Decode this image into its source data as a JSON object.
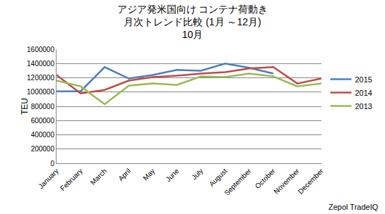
{
  "chart_data": {
    "type": "line",
    "title": [
      "アジア発米国向け コンテナ荷動き",
      "月次トレンド比較 (1月 ～12月)",
      "10月"
    ],
    "y_label": "TEU",
    "annotations": [
      "Zepol TradeIQ"
    ],
    "categories": [
      "January",
      "February",
      "March",
      "April",
      "May",
      "June",
      "July",
      "August",
      "September",
      "October",
      "November",
      "December"
    ],
    "series": [
      {
        "name": "2015",
        "color": "#4a7ebb",
        "values": [
          1010000,
          1010000,
          1350000,
          1190000,
          1240000,
          1310000,
          1300000,
          1400000,
          1340000,
          1260000,
          null,
          null
        ]
      },
      {
        "name": "2014",
        "color": "#be4b48",
        "values": [
          1240000,
          980000,
          1030000,
          1160000,
          1210000,
          1230000,
          1260000,
          1280000,
          1330000,
          1350000,
          1120000,
          1190000
        ]
      },
      {
        "name": "2013",
        "color": "#98b954",
        "values": [
          1160000,
          1080000,
          830000,
          1090000,
          1120000,
          1100000,
          1220000,
          1210000,
          1260000,
          1220000,
          1080000,
          1120000
        ]
      }
    ],
    "ylim": [
      0,
      1600000
    ],
    "yticks": [
      0,
      200000,
      400000,
      600000,
      800000,
      1000000,
      1200000,
      1400000,
      1600000
    ],
    "grid": true,
    "legend": "right"
  }
}
